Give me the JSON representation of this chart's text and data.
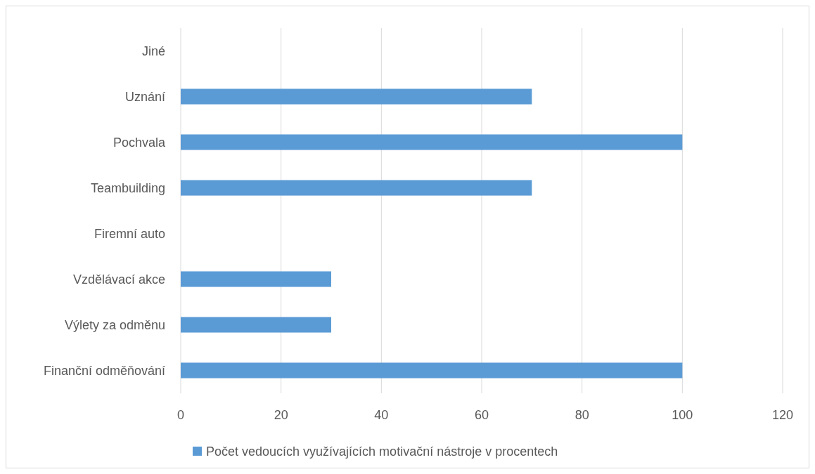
{
  "chart_data": {
    "type": "bar",
    "orientation": "horizontal",
    "categories": [
      "Jiné",
      "Uznání",
      "Pochvala",
      "Teambuilding",
      "Firemní auto",
      "Vzdělávací akce",
      "Výlety za odměnu",
      "Finanční odměňování"
    ],
    "series": [
      {
        "name": "Počet vedoucích využívajících motivační nástroje v procentech",
        "color": "#5b9bd5",
        "values": [
          0,
          70,
          100,
          70,
          0,
          30,
          30,
          100
        ]
      }
    ],
    "xlim": [
      0,
      120
    ],
    "xticks": [
      0,
      20,
      40,
      60,
      80,
      100,
      120
    ],
    "grid": "x",
    "legend": "bottom"
  }
}
